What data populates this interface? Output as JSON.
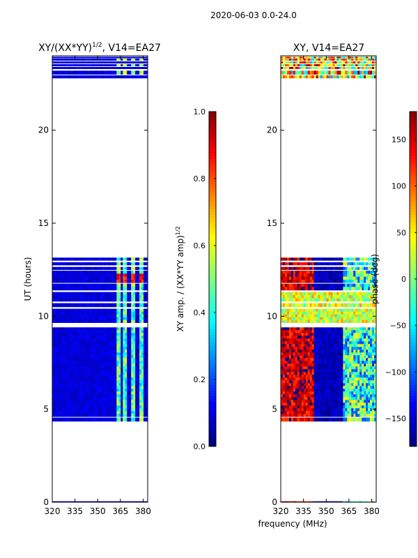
{
  "figure": {
    "suptitle": "2020-06-03 0.0-24.0",
    "shared_xlabel": "frequency (MHz)"
  },
  "colors": {
    "axes_frame": "#000000",
    "background": "#ffffff",
    "jet_stops": [
      "#00007f",
      "#0000ff",
      "#007fff",
      "#00ffff",
      "#7fff7f",
      "#ffff00",
      "#ff7f00",
      "#ff0000",
      "#7f0000"
    ]
  },
  "chart_data": [
    {
      "type": "heatmap",
      "title": "XY/(XX*YY)^1/2, V14=EA27",
      "title_main": "XY/(XX*YY)",
      "title_sup": "1/2",
      "title_rest": ", V14=EA27",
      "xlabel": "",
      "ylabel": "UT (hours)",
      "xlim": [
        320,
        383
      ],
      "ylim": [
        0,
        24
      ],
      "xticks": [
        320,
        335,
        350,
        365,
        380
      ],
      "yticks": [
        0,
        5,
        10,
        15,
        20
      ],
      "colorbar": {
        "label_main": "XY amp. / (XX*YY amp)",
        "label_sup": "1/2",
        "min": 0.0,
        "max": 1.0,
        "ticks": [
          "0.0",
          "0.2",
          "0.4",
          "0.6",
          "0.8",
          "1.0"
        ],
        "tick_values": [
          0.0,
          0.2,
          0.4,
          0.6,
          0.8,
          1.0
        ],
        "cmap": "jet"
      },
      "data_time_ranges": [
        [
          0.0,
          0.05
        ],
        [
          4.35,
          4.55
        ],
        [
          4.6,
          9.4
        ],
        [
          9.65,
          10.4
        ],
        [
          10.5,
          10.7
        ],
        [
          10.8,
          11.3
        ],
        [
          11.4,
          11.75
        ],
        [
          11.8,
          12.45
        ],
        [
          12.5,
          12.65
        ],
        [
          12.75,
          12.9
        ],
        [
          13.0,
          13.15
        ],
        [
          22.8,
          22.95
        ],
        [
          23.0,
          23.2
        ],
        [
          23.3,
          23.4
        ],
        [
          23.45,
          23.55
        ],
        [
          23.6,
          23.7
        ],
        [
          23.75,
          23.85
        ],
        [
          23.88,
          23.95
        ]
      ],
      "typical_value": 0.05,
      "bright_channels_mhz": [
        363.5,
        368,
        373.5,
        379
      ],
      "bright_value": 0.45,
      "peak_value_range_ut": [
        11.8,
        12.3
      ],
      "peak_value": 0.92
    },
    {
      "type": "heatmap",
      "title": "XY, V14=EA27",
      "xlabel": "",
      "ylabel": "",
      "xlim": [
        320,
        383
      ],
      "ylim": [
        0,
        24
      ],
      "xticks": [
        320,
        335,
        350,
        365,
        380
      ],
      "yticks": [
        0,
        5,
        10,
        15,
        20
      ],
      "colorbar": {
        "label": "phase (deg)",
        "min": -180,
        "max": 180,
        "ticks": [
          "−150",
          "−100",
          "−50",
          "0",
          "50",
          "100",
          "150"
        ],
        "tick_values": [
          -150,
          -100,
          -50,
          0,
          50,
          100,
          150
        ],
        "cmap": "jet"
      },
      "data_time_ranges": [
        [
          0.0,
          0.05
        ],
        [
          4.35,
          4.55
        ],
        [
          4.6,
          9.4
        ],
        [
          9.65,
          10.4
        ],
        [
          10.5,
          10.7
        ],
        [
          10.8,
          11.3
        ],
        [
          11.4,
          11.75
        ],
        [
          11.8,
          12.45
        ],
        [
          12.5,
          12.65
        ],
        [
          12.75,
          12.9
        ],
        [
          13.0,
          13.15
        ],
        [
          22.8,
          22.95
        ],
        [
          23.0,
          23.2
        ],
        [
          23.3,
          23.4
        ],
        [
          23.45,
          23.55
        ],
        [
          23.6,
          23.7
        ],
        [
          23.75,
          23.85
        ],
        [
          23.88,
          23.95
        ]
      ],
      "dominant_phase_low_freq_deg": 150,
      "dominant_phase_mid_freq_deg": -160,
      "high_freq_band_mhz": [
        361,
        383
      ],
      "band_phase_spread_deg": [
        -120,
        60
      ],
      "midday_phase_band_ut": [
        9.7,
        11.3
      ],
      "midday_phase_deg": 30
    }
  ]
}
